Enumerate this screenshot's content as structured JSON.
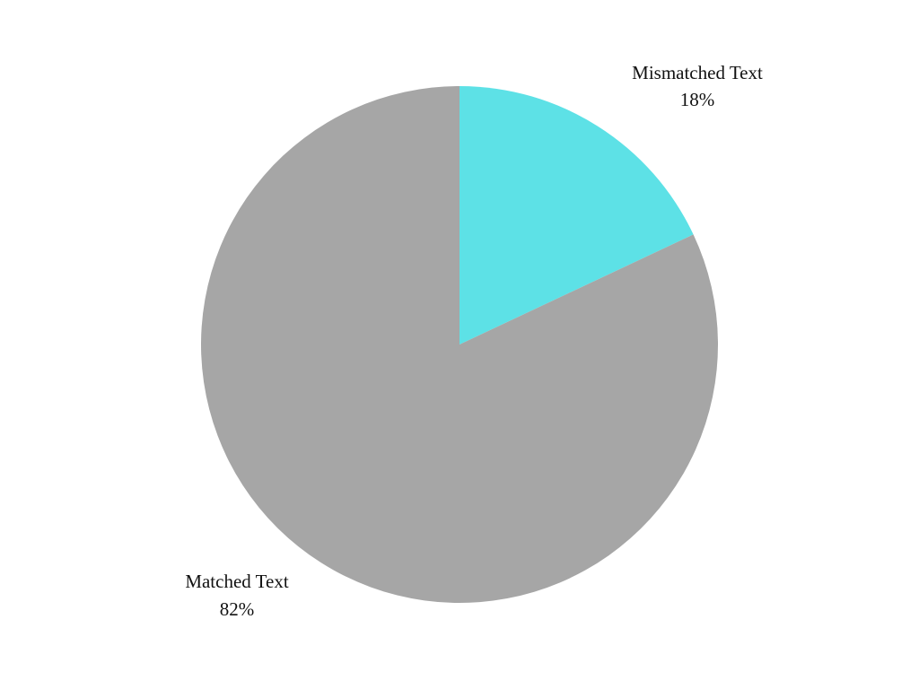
{
  "chart_data": {
    "type": "pie",
    "start_angle_deg": 0,
    "direction": "clockwise",
    "slices": [
      {
        "label": "Mismatched Text",
        "value": 18,
        "display": "18%",
        "color": "#5de1e6"
      },
      {
        "label": "Matched Text",
        "value": 82,
        "display": "82%",
        "color": "#a6a6a6"
      }
    ]
  }
}
